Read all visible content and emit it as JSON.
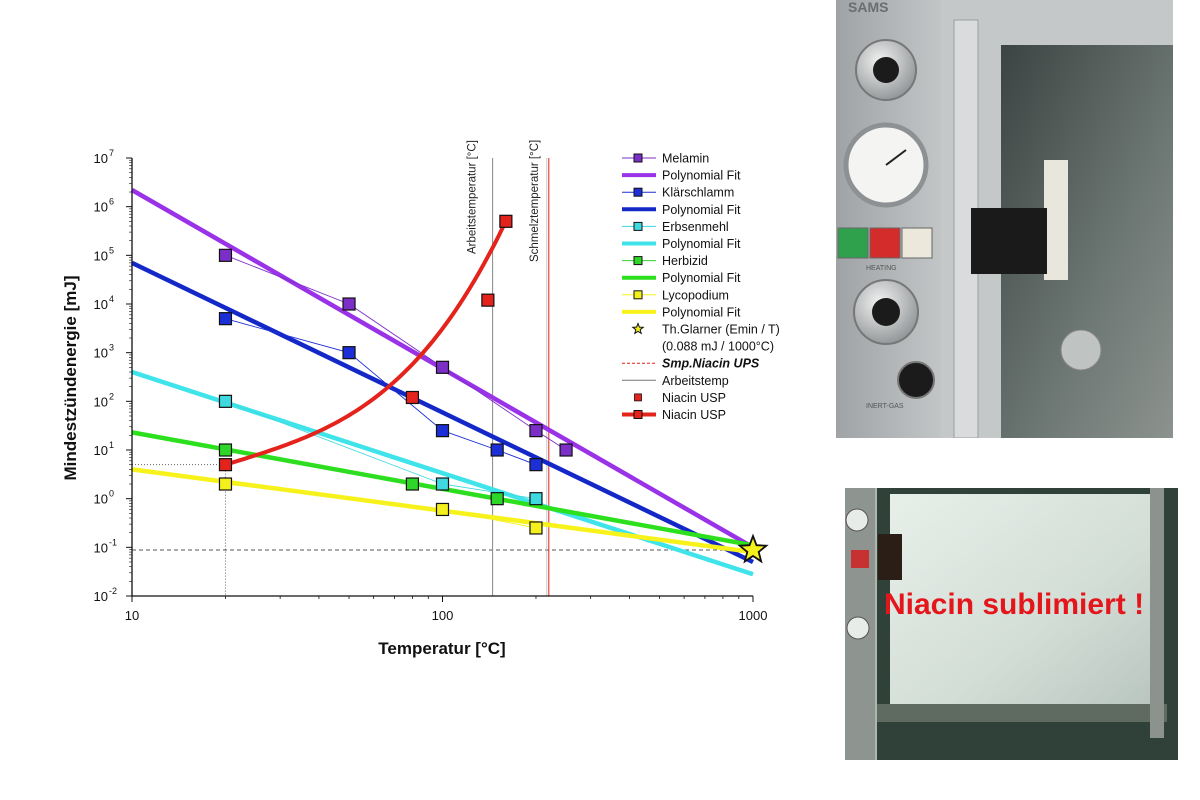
{
  "chart_data": {
    "type": "scatter",
    "xlabel": "Temperatur [°C]",
    "ylabel": "Mindestzündenergie [mJ]",
    "x_scale": "log",
    "y_scale": "log",
    "xlim": [
      10,
      1000
    ],
    "ylim": [
      0.01,
      10000000
    ],
    "x_ticks": [
      "10",
      "100",
      "1000"
    ],
    "y_ticks": [
      {
        "base": "10",
        "exp": "-2",
        "value": 0.01
      },
      {
        "base": "10",
        "exp": "-1",
        "value": 0.1
      },
      {
        "base": "10",
        "exp": "0",
        "value": 1
      },
      {
        "base": "10",
        "exp": "1",
        "value": 10
      },
      {
        "base": "10",
        "exp": "2",
        "value": 100
      },
      {
        "base": "10",
        "exp": "3",
        "value": 1000
      },
      {
        "base": "10",
        "exp": "4",
        "value": 10000
      },
      {
        "base": "10",
        "exp": "5",
        "value": 100000
      },
      {
        "base": "10",
        "exp": "6",
        "value": 1000000
      },
      {
        "base": "10",
        "exp": "7",
        "value": 10000000
      }
    ],
    "grid": false,
    "legend_position": "right",
    "series": [
      {
        "name": "Melamin",
        "color": "#7b2fc7",
        "x": [
          20,
          50,
          100,
          200,
          250
        ],
        "y": [
          100000,
          10000,
          500,
          25,
          10
        ]
      },
      {
        "name": "Klärschlamm",
        "color": "#1c2ed6",
        "x": [
          20,
          50,
          100,
          150,
          200
        ],
        "y": [
          5000,
          1000,
          25,
          10,
          5
        ]
      },
      {
        "name": "Erbsenmehl",
        "color": "#3fd9e0",
        "x": [
          20,
          100,
          200
        ],
        "y": [
          100,
          2,
          1
        ]
      },
      {
        "name": "Herbizid",
        "color": "#2fd62a",
        "x": [
          20,
          80,
          150
        ],
        "y": [
          10,
          2,
          1
        ]
      },
      {
        "name": "Lycopodium",
        "color": "#f4f01e",
        "x": [
          20,
          100,
          200
        ],
        "y": [
          2,
          0.6,
          0.25
        ]
      },
      {
        "name": "Niacin USP",
        "color": "#e3231c",
        "x": [
          20,
          80,
          140,
          160
        ],
        "y": [
          5,
          120,
          12000,
          500000
        ]
      }
    ],
    "fits": [
      {
        "color": "#9a32e8",
        "x": [
          10,
          1000
        ],
        "y": [
          2200000,
          0.1
        ]
      },
      {
        "color": "#1428c8",
        "x": [
          10,
          1000
        ],
        "y": [
          70000,
          0.05
        ]
      },
      {
        "color": "#3fe3ea",
        "x": [
          10,
          1000
        ],
        "y": [
          400,
          0.028
        ]
      },
      {
        "color": "#2de01e",
        "x": [
          10,
          1000
        ],
        "y": [
          23,
          0.11
        ]
      },
      {
        "color": "#f7f21a",
        "x": [
          10,
          1000
        ],
        "y": [
          4,
          0.08
        ]
      }
    ],
    "star_point": {
      "x": 1000,
      "y": 0.088
    },
    "reference_lines": {
      "hline_y": 0.088,
      "vline_work": 145,
      "vline_melt": 220,
      "dotted_x": 20,
      "dotted_y": 5
    },
    "vline_labels": {
      "work": "Arbeitstemperatur [°C]",
      "melt": "Schmelztemperatur [°C]"
    },
    "legend": [
      {
        "label": "Melamin",
        "style": "square-line",
        "color": "#7b2fc7",
        "bold_italic": false
      },
      {
        "label": "Polynomial Fit",
        "style": "thick-line",
        "color": "#9a32e8",
        "bold_italic": false
      },
      {
        "label": "Klärschlamm",
        "style": "square-line",
        "color": "#1c2ed6",
        "bold_italic": false
      },
      {
        "label": "Polynomial Fit",
        "style": "thick-line",
        "color": "#1428c8",
        "bold_italic": false
      },
      {
        "label": "Erbsenmehl",
        "style": "square-line",
        "color": "#3fd9e0",
        "bold_italic": false
      },
      {
        "label": "Polynomial Fit",
        "style": "thick-line",
        "color": "#3fe3ea",
        "bold_italic": false
      },
      {
        "label": "Herbizid",
        "style": "square-line",
        "color": "#2fd62a",
        "bold_italic": false
      },
      {
        "label": "Polynomial Fit",
        "style": "thick-line",
        "color": "#2de01e",
        "bold_italic": false
      },
      {
        "label": "Lycopodium",
        "style": "square-line",
        "color": "#f4f01e",
        "bold_italic": false
      },
      {
        "label": "Polynomial Fit",
        "style": "thick-line",
        "color": "#f7f21a",
        "bold_italic": false
      },
      {
        "label": "Th.Glarner (Emin / T)",
        "style": "star",
        "color": "#f4f01e",
        "bold_italic": false
      },
      {
        "label": "(0.088 mJ / 1000°C)",
        "style": "none",
        "color": "",
        "bold_italic": false
      },
      {
        "label": "Smp.Niacin UPS",
        "style": "dash-line",
        "color": "#e3231c",
        "bold_italic": true
      },
      {
        "label": "Arbeitstemp",
        "style": "thin-line",
        "color": "#777777",
        "bold_italic": false
      },
      {
        "label": "Niacin USP",
        "style": "square",
        "color": "#e3231c",
        "bold_italic": false
      },
      {
        "label": "Niacin USP",
        "style": "thick-square-line",
        "color": "#e3231c",
        "bold_italic": false
      }
    ]
  },
  "photos": {
    "oven_brand": "SAMS",
    "heating_label": "HEATING",
    "gas_label": "INERT-GAS",
    "sublimation_text": "Niacin sublimiert !"
  }
}
